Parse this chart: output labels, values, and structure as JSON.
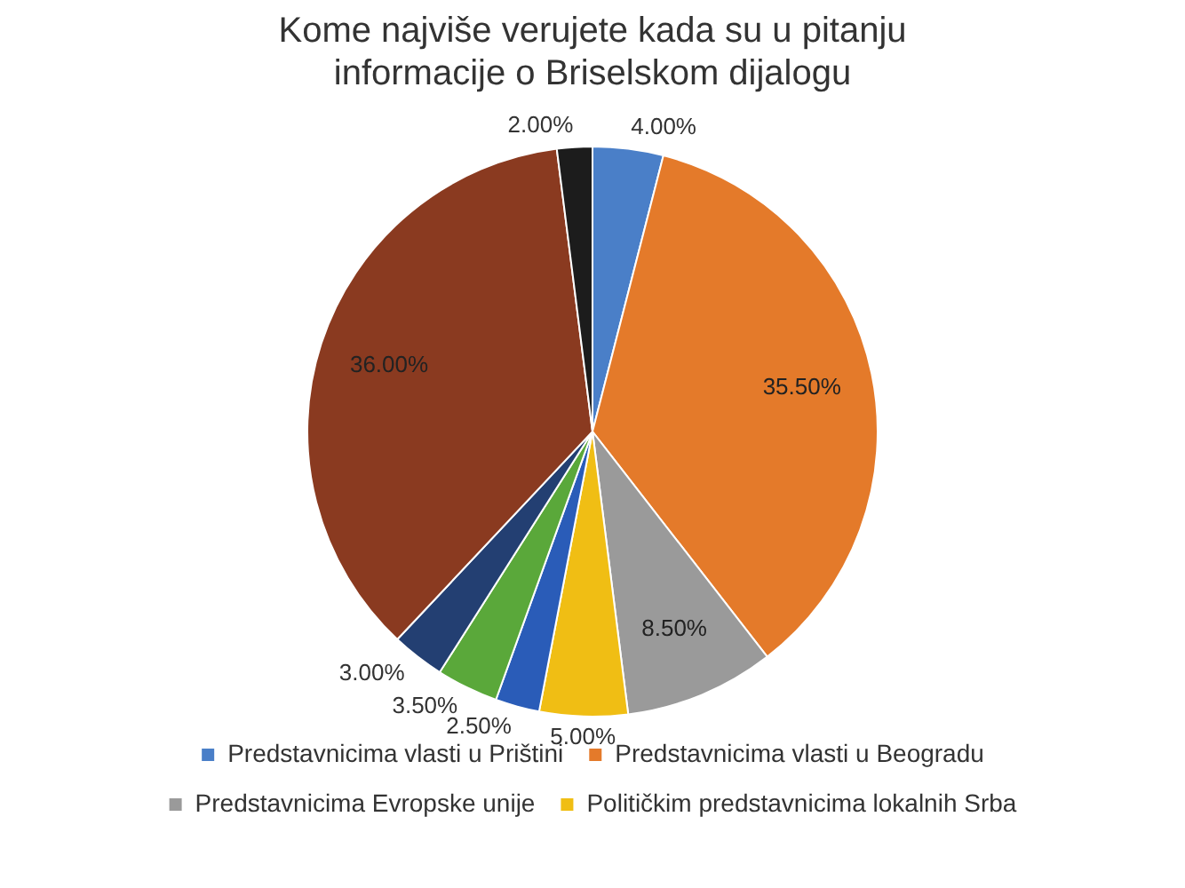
{
  "chart_data": {
    "type": "pie",
    "title": "Kome najviše verujete kada su u pitanju\ninformacije o Briselskom dijalogu",
    "categories": [
      "Predstavnicima vlasti u Prištini",
      "Predstavnicima vlasti u Beogradu",
      "Predstavnicima Evropske unije",
      "Političkim predstavnicima lokalnih Srba",
      null,
      null,
      null,
      null,
      null
    ],
    "values": [
      4,
      35.5,
      8.5,
      5,
      2.5,
      3.5,
      3,
      36,
      2
    ],
    "value_labels": [
      "4.00%",
      "35.50%",
      "8.50%",
      "5.00%",
      "2.50%",
      "3.50%",
      "3.00%",
      "36.00%",
      "2.00%"
    ],
    "colors": [
      "#4a7fc8",
      "#e47a2a",
      "#9a9a9a",
      "#f0be14",
      "#2a5cb8",
      "#5aa83a",
      "#233f72",
      "#8a3a20",
      "#1c1c1c"
    ],
    "legend": "bottom"
  }
}
